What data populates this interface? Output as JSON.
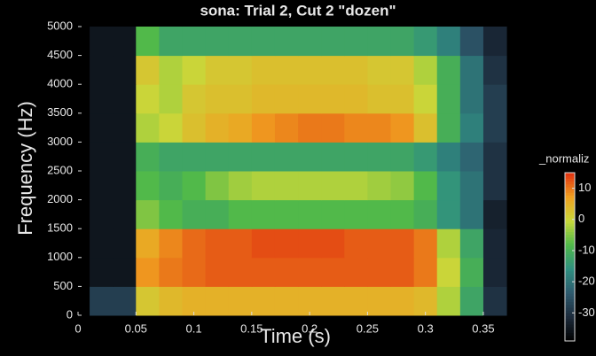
{
  "chart_data": {
    "type": "heatmap",
    "title": "sona: Trial 2, Cut 2 \"dozen\"",
    "xlabel": "Time (s)",
    "ylabel": "Frequency (Hz)",
    "colorbar_label": "_normaliz",
    "x": [
      0.02,
      0.04,
      0.06,
      0.08,
      0.1,
      0.12,
      0.14,
      0.16,
      0.18,
      0.2,
      0.22,
      0.24,
      0.26,
      0.28,
      0.3,
      0.32,
      0.34,
      0.36
    ],
    "y": [
      250,
      750,
      1250,
      1750,
      2250,
      2750,
      3250,
      3750,
      4250,
      4750
    ],
    "z": [
      [
        -28,
        -28,
        2,
        4,
        5,
        5,
        5,
        5,
        5,
        5,
        5,
        5,
        5,
        5,
        4,
        -2,
        -12,
        -30
      ],
      [
        -35,
        -35,
        8,
        10,
        11,
        12,
        12,
        12,
        12,
        12,
        12,
        12,
        12,
        12,
        10,
        0,
        -10,
        -32
      ],
      [
        -35,
        -35,
        6,
        9,
        11,
        12,
        12,
        13,
        13,
        13,
        13,
        12,
        12,
        12,
        10,
        -2,
        -12,
        -32
      ],
      [
        -35,
        -35,
        -5,
        -8,
        -10,
        -10,
        -8,
        -8,
        -8,
        -8,
        -8,
        -8,
        -8,
        -8,
        -10,
        -15,
        -20,
        -33
      ],
      [
        -35,
        -35,
        -8,
        -10,
        -8,
        -5,
        -3,
        -2,
        -2,
        -2,
        -2,
        -2,
        -3,
        -4,
        -8,
        -15,
        -20,
        -30
      ],
      [
        -35,
        -35,
        -10,
        -12,
        -12,
        -12,
        -12,
        -12,
        -12,
        -12,
        -12,
        -12,
        -12,
        -12,
        -14,
        -18,
        -22,
        -30
      ],
      [
        -35,
        -35,
        -2,
        0,
        3,
        5,
        6,
        8,
        9,
        10,
        10,
        9,
        9,
        8,
        3,
        -10,
        -18,
        -28
      ],
      [
        -35,
        -35,
        0,
        -2,
        2,
        3,
        3,
        4,
        4,
        4,
        4,
        4,
        3,
        3,
        0,
        -10,
        -20,
        -28
      ],
      [
        -35,
        -35,
        2,
        -2,
        0,
        2,
        2,
        3,
        3,
        3,
        3,
        3,
        2,
        2,
        -2,
        -10,
        -20,
        -30
      ],
      [
        -35,
        -35,
        -8,
        -12,
        -12,
        -12,
        -12,
        -12,
        -12,
        -12,
        -12,
        -12,
        -12,
        -12,
        -14,
        -18,
        -25,
        -32
      ]
    ],
    "xlim": [
      0,
      0.375
    ],
    "xticks": [
      0,
      0.05,
      0.1,
      0.15,
      0.2,
      0.25,
      0.3,
      0.35
    ],
    "ylim": [
      0,
      5000
    ],
    "yticks": [
      0,
      500,
      1000,
      1500,
      2000,
      2500,
      3000,
      3500,
      4000,
      4500,
      5000
    ],
    "clim": [
      -39,
      15
    ],
    "cticks": [
      -30,
      -20,
      -10,
      0,
      10
    ],
    "colorscale": [
      "#000000",
      "#1c2a3a",
      "#2e5a6e",
      "#2f8f80",
      "#4fb84a",
      "#c8d83a",
      "#f0a020",
      "#e03010"
    ]
  }
}
